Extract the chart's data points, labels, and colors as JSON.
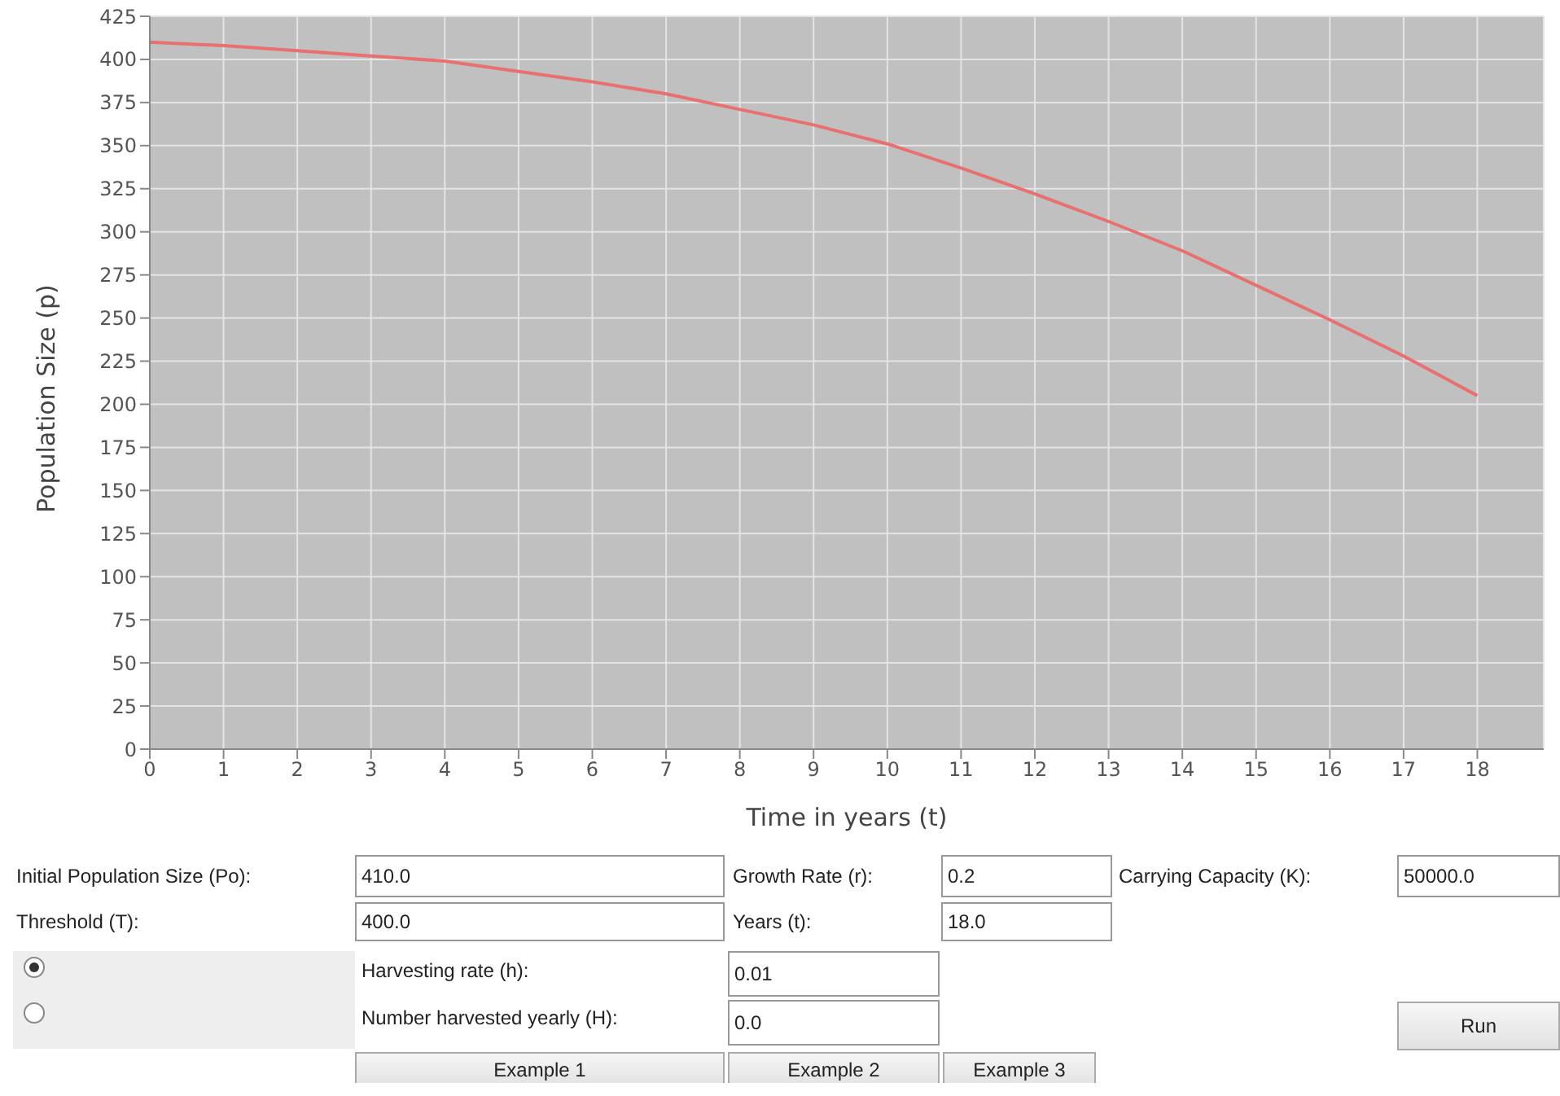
{
  "chart_data": [
    {
      "type": "line",
      "xlabel": "Time in years (t)",
      "ylabel": "Population Size (p)",
      "x": [
        0,
        1,
        2,
        3,
        4,
        5,
        6,
        7,
        8,
        9,
        10,
        11,
        12,
        13,
        14,
        15,
        16,
        17,
        18
      ],
      "series": [
        {
          "color": "#e8706e",
          "values": [
            410,
            408,
            405,
            402,
            399,
            393,
            387,
            380,
            371,
            362,
            351,
            337,
            322,
            306,
            289,
            269,
            249,
            228,
            205
          ]
        }
      ],
      "xlim": [
        0,
        18.9
      ],
      "xticks": [
        0,
        1,
        2,
        3,
        4,
        5,
        6,
        7,
        8,
        9,
        10,
        11,
        12,
        13,
        14,
        15,
        16,
        17,
        18
      ],
      "ylim": [
        0,
        425
      ],
      "yticks": [
        0,
        25,
        50,
        75,
        100,
        125,
        150,
        175,
        200,
        225,
        250,
        275,
        300,
        325,
        350,
        375,
        400,
        425
      ],
      "grid": true,
      "marker": "none",
      "line_style": "solid"
    },
    {
      "type": "other",
      "annotations": [
        "Initial Population Size (Po):",
        "410.0",
        "Growth Rate (r):",
        "0.2",
        "Carrying Capacity (K):",
        "50000.0",
        "Threshold (T):",
        "400.0",
        "Years (t):",
        "18.0",
        "Harvesting rate (h):",
        "0.01",
        "Number harvested yearly (H):",
        "0.0",
        "Run",
        "Example 1",
        "Example 2",
        "Example 3"
      ]
    }
  ]
}
